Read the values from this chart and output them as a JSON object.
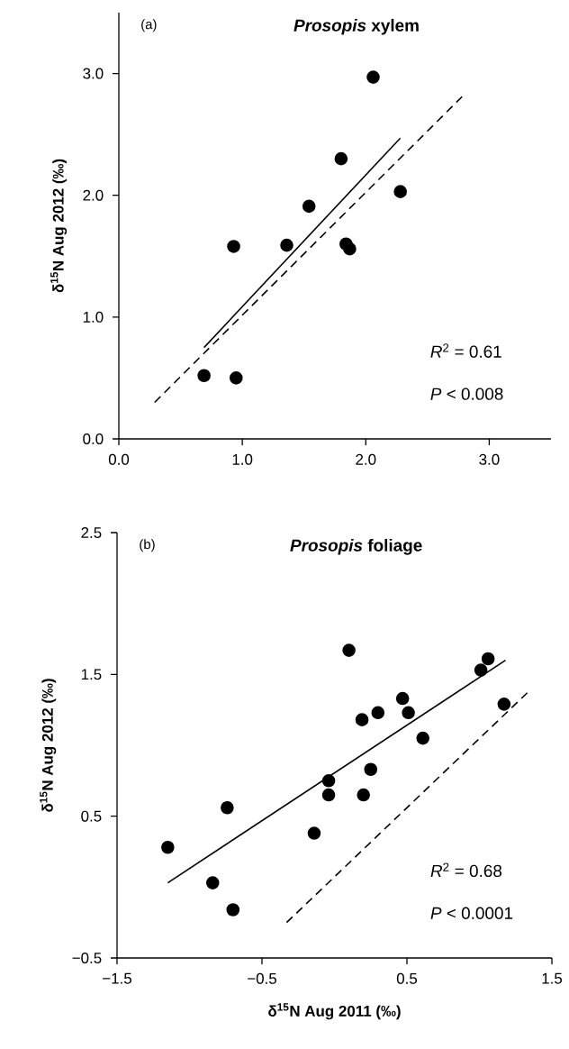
{
  "chart_data": [
    {
      "type": "scatter",
      "title": "*Prosopis* xylem",
      "ylabel": "δ$^{15}$N Aug 2012 (‰)",
      "annotations": [
        "(a)",
        "*R*$^{2}$ = 0.61",
        "*P* < 0.008"
      ],
      "xlim": [
        0,
        3.5
      ],
      "ylim": [
        0,
        3.5
      ],
      "xticks": [
        {
          "value": 0,
          "label": "0.0"
        },
        {
          "value": 1,
          "label": "1.0"
        },
        {
          "value": 2,
          "label": "2.0"
        },
        {
          "value": 3,
          "label": "3.0"
        }
      ],
      "yticks": [
        {
          "value": 0,
          "label": "0.0"
        },
        {
          "value": 1,
          "label": "1.0"
        },
        {
          "value": 2,
          "label": "2.0"
        },
        {
          "value": 3,
          "label": "3.0"
        }
      ],
      "series": [
        {
          "type": "scatter",
          "color": "#000000",
          "marker": "circle",
          "x": [
            2.06,
            1.8,
            2.28,
            1.54,
            0.93,
            1.36,
            1.84,
            1.87,
            0.69,
            0.95
          ],
          "values": [
            2.97,
            2.3,
            2.03,
            1.91,
            1.58,
            1.59,
            1.6,
            1.56,
            0.52,
            0.5
          ]
        },
        {
          "type": "line",
          "color": "#000000",
          "marker": "none",
          "line_style": "solid",
          "x": [
            0.69,
            2.28
          ],
          "values": [
            0.75,
            2.47
          ]
        },
        {
          "type": "line",
          "color": "#000000",
          "marker": "none",
          "line_style": "dashed",
          "x": [
            0.29,
            2.78
          ],
          "values": [
            0.3,
            2.81
          ]
        }
      ]
    },
    {
      "type": "scatter",
      "title": "*Prosopis* foliage",
      "xlabel": "δ$^{15}$N  Aug 2011 (‰)",
      "ylabel": "δ$^{15}$N Aug 2012 (‰)",
      "annotations": [
        "(b)",
        "*R*$^{2}$ = 0.68",
        "*P* < 0.0001"
      ],
      "xlim": [
        -1.5,
        1.5
      ],
      "ylim": [
        -0.5,
        2.5
      ],
      "xticks": [
        {
          "value": -1.5,
          "label": "−1.5"
        },
        {
          "value": -0.5,
          "label": "−0.5"
        },
        0.5,
        1.5
      ],
      "yticks": [
        {
          "value": -0.5,
          "label": "−0.5"
        },
        0.5,
        1.5,
        2.5
      ],
      "series": [
        {
          "type": "scatter",
          "color": "#000000",
          "marker": "circle",
          "x": [
            0.1,
            1.06,
            1.01,
            1.17,
            0.47,
            0.51,
            0.3,
            0.19,
            0.61,
            0.25,
            -0.04,
            -0.04,
            0.2,
            -0.74,
            -0.14,
            -1.15,
            -0.84,
            -0.7
          ],
          "values": [
            1.67,
            1.61,
            1.53,
            1.29,
            1.33,
            1.23,
            1.23,
            1.18,
            1.05,
            0.83,
            0.75,
            0.65,
            0.65,
            0.56,
            0.38,
            0.28,
            0.03,
            -0.16
          ]
        },
        {
          "type": "line",
          "color": "#000000",
          "marker": "none",
          "line_style": "solid",
          "x": [
            -1.15,
            1.18
          ],
          "values": [
            0.03,
            1.6
          ]
        },
        {
          "type": "line",
          "color": "#000000",
          "marker": "none",
          "line_style": "dashed",
          "x": [
            -0.33,
            1.33
          ],
          "values": [
            -0.25,
            1.37
          ]
        }
      ]
    }
  ]
}
